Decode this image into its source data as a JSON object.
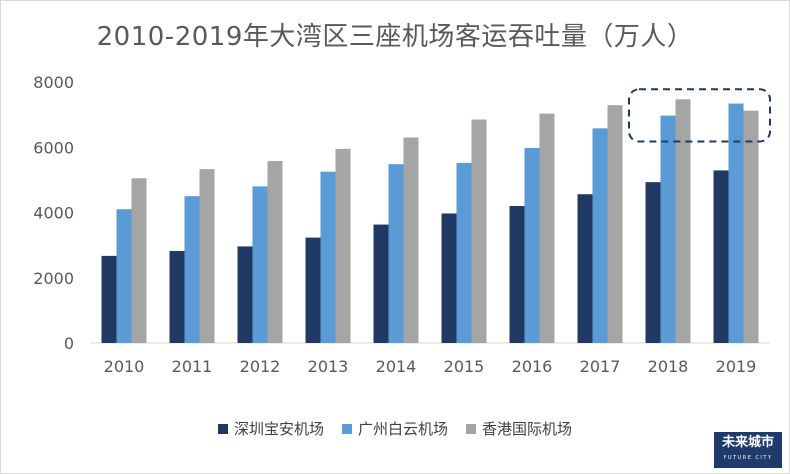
{
  "chart_data": {
    "type": "bar",
    "title": "2010-2019年大湾区三座机场客运吞吐量（万人）",
    "xlabel": "",
    "ylabel": "",
    "ylim": [
      0,
      8000
    ],
    "yticks": [
      0,
      2000,
      4000,
      6000,
      8000
    ],
    "grid": false,
    "legend_position": "bottom",
    "categories": [
      "2010",
      "2011",
      "2012",
      "2013",
      "2014",
      "2015",
      "2016",
      "2017",
      "2018",
      "2019"
    ],
    "series": [
      {
        "name": "深圳宝安机场",
        "color": "#203864",
        "values": [
          2670,
          2820,
          2960,
          3230,
          3630,
          3970,
          4200,
          4560,
          4930,
          5290
        ]
      },
      {
        "name": "广州白云机场",
        "color": "#5b9bd5",
        "values": [
          4100,
          4500,
          4800,
          5250,
          5480,
          5520,
          5980,
          6580,
          6970,
          7340
        ]
      },
      {
        "name": "香港国际机场",
        "color": "#a5a5a5",
        "values": [
          5050,
          5330,
          5580,
          5950,
          6300,
          6850,
          7030,
          7290,
          7470,
          7120
        ]
      }
    ],
    "annotation": {
      "type": "dashed-box",
      "around_category": "2018-2019 top",
      "color": "#203864"
    }
  },
  "logo": {
    "main": "未来城市",
    "sub": "FUTURE CITY"
  }
}
